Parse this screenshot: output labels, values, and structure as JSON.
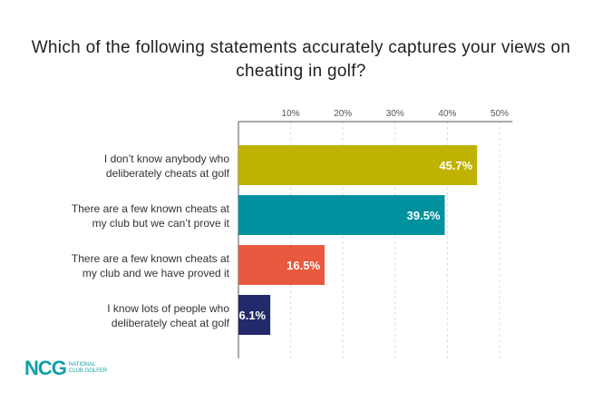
{
  "chart_data": {
    "type": "bar",
    "orientation": "horizontal",
    "title": "Which of the following statements accurately captures your views on cheating in golf?",
    "categories": [
      "I don't know anybody who deliberately cheats at golf",
      "There are a few known cheats at my club but we can't prove it",
      "There are a few known cheats at my club and we have proved it",
      "I know lots of people who deliberately cheat at golf"
    ],
    "category_lines": [
      [
        "I don’t know anybody who",
        "deliberately cheats at golf"
      ],
      [
        "There are a few known cheats at",
        "my club but we can’t prove it"
      ],
      [
        "There are a few known cheats at",
        "my club and we have proved it"
      ],
      [
        "I know lots of people who",
        "deliberately cheat at golf"
      ]
    ],
    "values": [
      45.7,
      39.5,
      16.5,
      6.1
    ],
    "data_labels": [
      "45.7%",
      "39.5%",
      "16.5%",
      "6.1%"
    ],
    "colors": [
      "#bfb200",
      "#00919f",
      "#e8593f",
      "#222a6b"
    ],
    "xlim": [
      0,
      52
    ],
    "ticks": [
      10,
      20,
      30,
      40,
      50
    ],
    "tick_labels": [
      "10%",
      "20%",
      "30%",
      "40%",
      "50%"
    ],
    "tick_position": "top",
    "grid": true,
    "xlabel": "",
    "ylabel": ""
  },
  "logo": {
    "mark": "NCG",
    "line1": "NATIONAL",
    "line2": "CLUB GOLFER"
  }
}
